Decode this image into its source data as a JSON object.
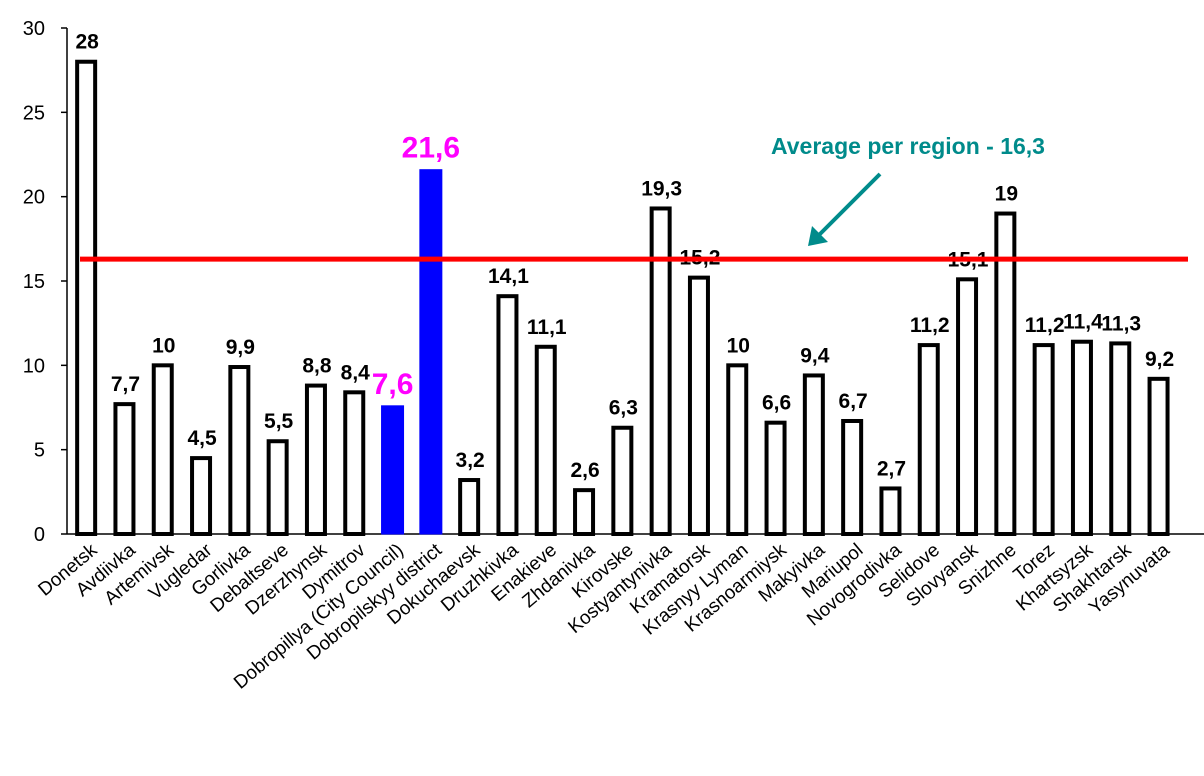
{
  "colors": {
    "bar_fill": "#ffffff",
    "bar_stroke": "#000000",
    "highlight_fill": "#0000ff",
    "highlight_label": "#ff00ff",
    "average_line": "#ff0000",
    "annotation": "#008b8b"
  },
  "chart_data": {
    "type": "bar",
    "categories": [
      "Donetsk",
      "Avdiivka",
      "Artemivsk",
      "Vugledar",
      "Gorlivka",
      "Debaltseve",
      "Dzerzhynsk",
      "Dymitrov",
      "Dobropillya (City Council)",
      "Dobropilskyy district",
      "Dokuchaevsk",
      "Druzhkivka",
      "Enakieve",
      "Zhdanivka",
      "Kirovske",
      "Kostyantynivka",
      "Kramatorsk",
      "Krasnyy Lyman",
      "Krasnoarmiysk",
      "Makyivka",
      "Mariupol",
      "Novogrodivka",
      "Selidove",
      "Slovyansk",
      "Snizhne",
      "Torez",
      "Khartsyzsk",
      "Shakhtarsk",
      "Yasynuvata"
    ],
    "values": [
      28,
      7.7,
      10,
      4.5,
      9.9,
      5.5,
      8.8,
      8.4,
      7.6,
      21.6,
      3.2,
      14.1,
      11.1,
      2.6,
      6.3,
      19.3,
      15.2,
      10,
      6.6,
      9.4,
      6.7,
      2.7,
      11.2,
      15.1,
      19,
      11.2,
      11.4,
      11.3,
      9.2
    ],
    "value_labels": [
      "28",
      "7,7",
      "10",
      "4,5",
      "9,9",
      "5,5",
      "8,8",
      "8,4",
      "7,6",
      "21,6",
      "3,2",
      "14,1",
      "11,1",
      "2,6",
      "6,3",
      "19,3",
      "15,2",
      "10",
      "6,6",
      "9,4",
      "6,7",
      "2,7",
      "11,2",
      "15,1",
      "19",
      "11,2",
      "11,4",
      "11,3",
      "9,2"
    ],
    "highlighted": [
      "Dobropillya (City Council)",
      "Dobropilskyy district"
    ],
    "ylim": [
      0,
      30
    ],
    "yticks": [
      0,
      5,
      10,
      15,
      20,
      25,
      30
    ],
    "average": {
      "value": 16.3,
      "label": "Average per region - 16,3"
    },
    "grid": false,
    "legend": "none"
  }
}
